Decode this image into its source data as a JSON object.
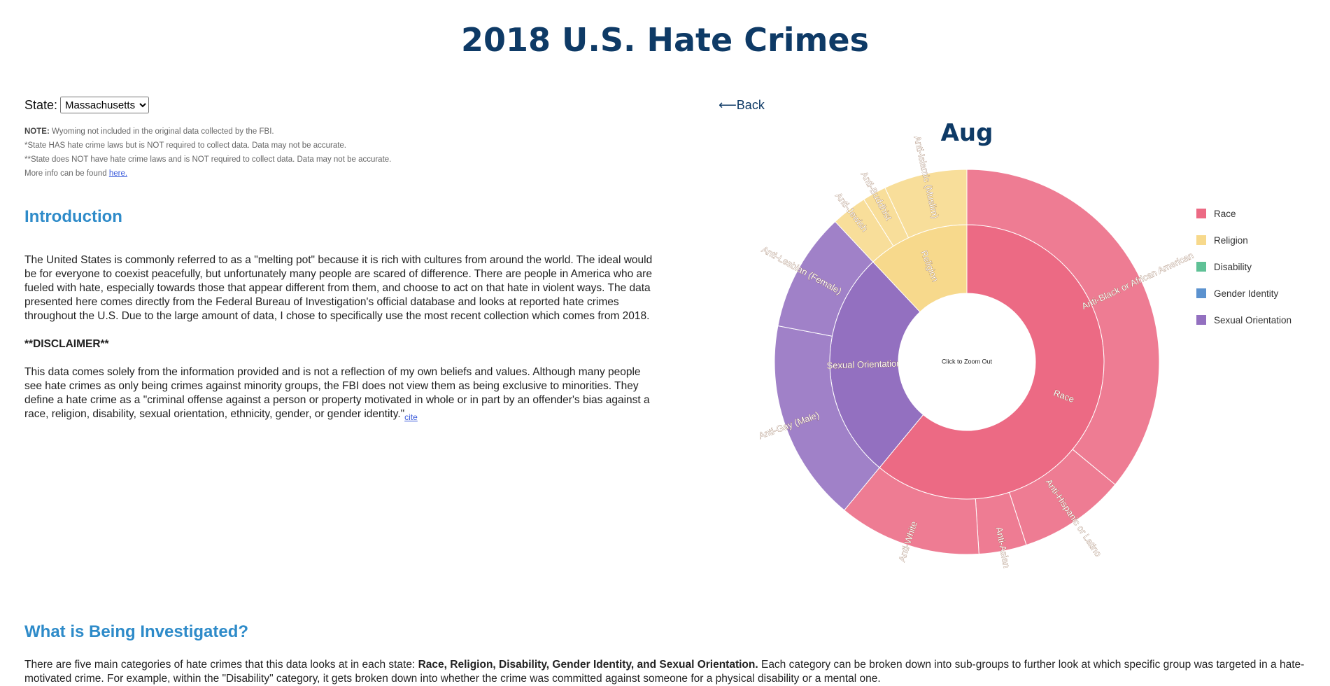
{
  "page": {
    "title": "2018 U.S. Hate Crimes"
  },
  "state_selector": {
    "label": "State:",
    "selected": "Massachusetts"
  },
  "notes": {
    "note_label": "NOTE:",
    "note_text": " Wyoming not included in the original data collected by the FBI.",
    "line2": "*State HAS hate crime laws but is NOT required to collect data. Data may not be accurate.",
    "line3": "**State does NOT have hate crime laws and is NOT required to collect data. Data may not be accurate.",
    "more_info": "More info can be found ",
    "here_link": "here."
  },
  "intro": {
    "heading": "Introduction",
    "paragraph1": "The United States is commonly referred to as a \"melting pot\" because it is rich with cultures from around the world. The ideal would be for everyone to coexist peacefully, but unfortunately many people are scared of difference. There are people in America who are fueled with hate, especially towards those that appear different from them, and choose to act on that hate in violent ways. The data presented here comes directly from the Federal Bureau of Investigation's official database and looks at reported hate crimes throughout the U.S. Due to the large amount of data, I chose to specifically use the most recent collection which comes from 2018.",
    "disclaimer": "**DISCLAIMER**",
    "paragraph2": "This data comes solely from the information provided and is not a reflection of my own beliefs and values. Although many people see hate crimes as only being crimes against minority groups, the FBI does not view them as being exclusive to minorities. They define a hate crime as a \"criminal offense against a person or property motivated in whole or in part by an offender's bias against a race, religion, disability, sexual orientation, ethnicity, gender, or gender identity.\"",
    "cite_link": "cite"
  },
  "investigated": {
    "heading": "What is Being Investigated?",
    "text_before": "There are five main categories of hate crimes that this data looks at in each state: ",
    "bold_text": "Race, Religion, Disability, Gender Identity, and Sexual Orientation.",
    "text_after": " Each category can be broken down into sub-groups to further look at which specific group was targeted in a hate-motivated crime. For example, within the \"Disability\" category, it gets broken down into whether the crime was committed against someone for a physical disability or a mental one."
  },
  "navigation": {
    "back_label": "⟵Back"
  },
  "chart_data": {
    "type": "sunburst",
    "title": "Aug",
    "center_label": "Click to Zoom Out",
    "categories": [
      {
        "name": "Race",
        "value": 61,
        "color": "#ec6a84",
        "children": [
          {
            "name": "Anti-Black or African American",
            "value": 36
          },
          {
            "name": "Anti-Hispanic or Latino",
            "value": 9
          },
          {
            "name": "Anti-Asian",
            "value": 4
          },
          {
            "name": "Anti-White",
            "value": 12
          }
        ]
      },
      {
        "name": "Sexual Orientation",
        "value": 27,
        "color": "#9370c0",
        "children": [
          {
            "name": "Anti-Gay (Male)",
            "value": 17
          },
          {
            "name": "Anti-Lesbian (Female)",
            "value": 10
          }
        ]
      },
      {
        "name": "Religion",
        "value": 12,
        "color": "#f7d98c",
        "children": [
          {
            "name": "Anti-Jewish",
            "value": 3
          },
          {
            "name": "Anti-Buddhist",
            "value": 2
          },
          {
            "name": "Anti-Islamic (Muslim)",
            "value": 7
          }
        ]
      }
    ],
    "legend": [
      {
        "label": "Race",
        "color": "#ec6a84"
      },
      {
        "label": "Religion",
        "color": "#f7d98c"
      },
      {
        "label": "Disability",
        "color": "#5fc196"
      },
      {
        "label": "Gender Identity",
        "color": "#5b92cf"
      },
      {
        "label": "Sexual Orientation",
        "color": "#9370c0"
      }
    ]
  }
}
